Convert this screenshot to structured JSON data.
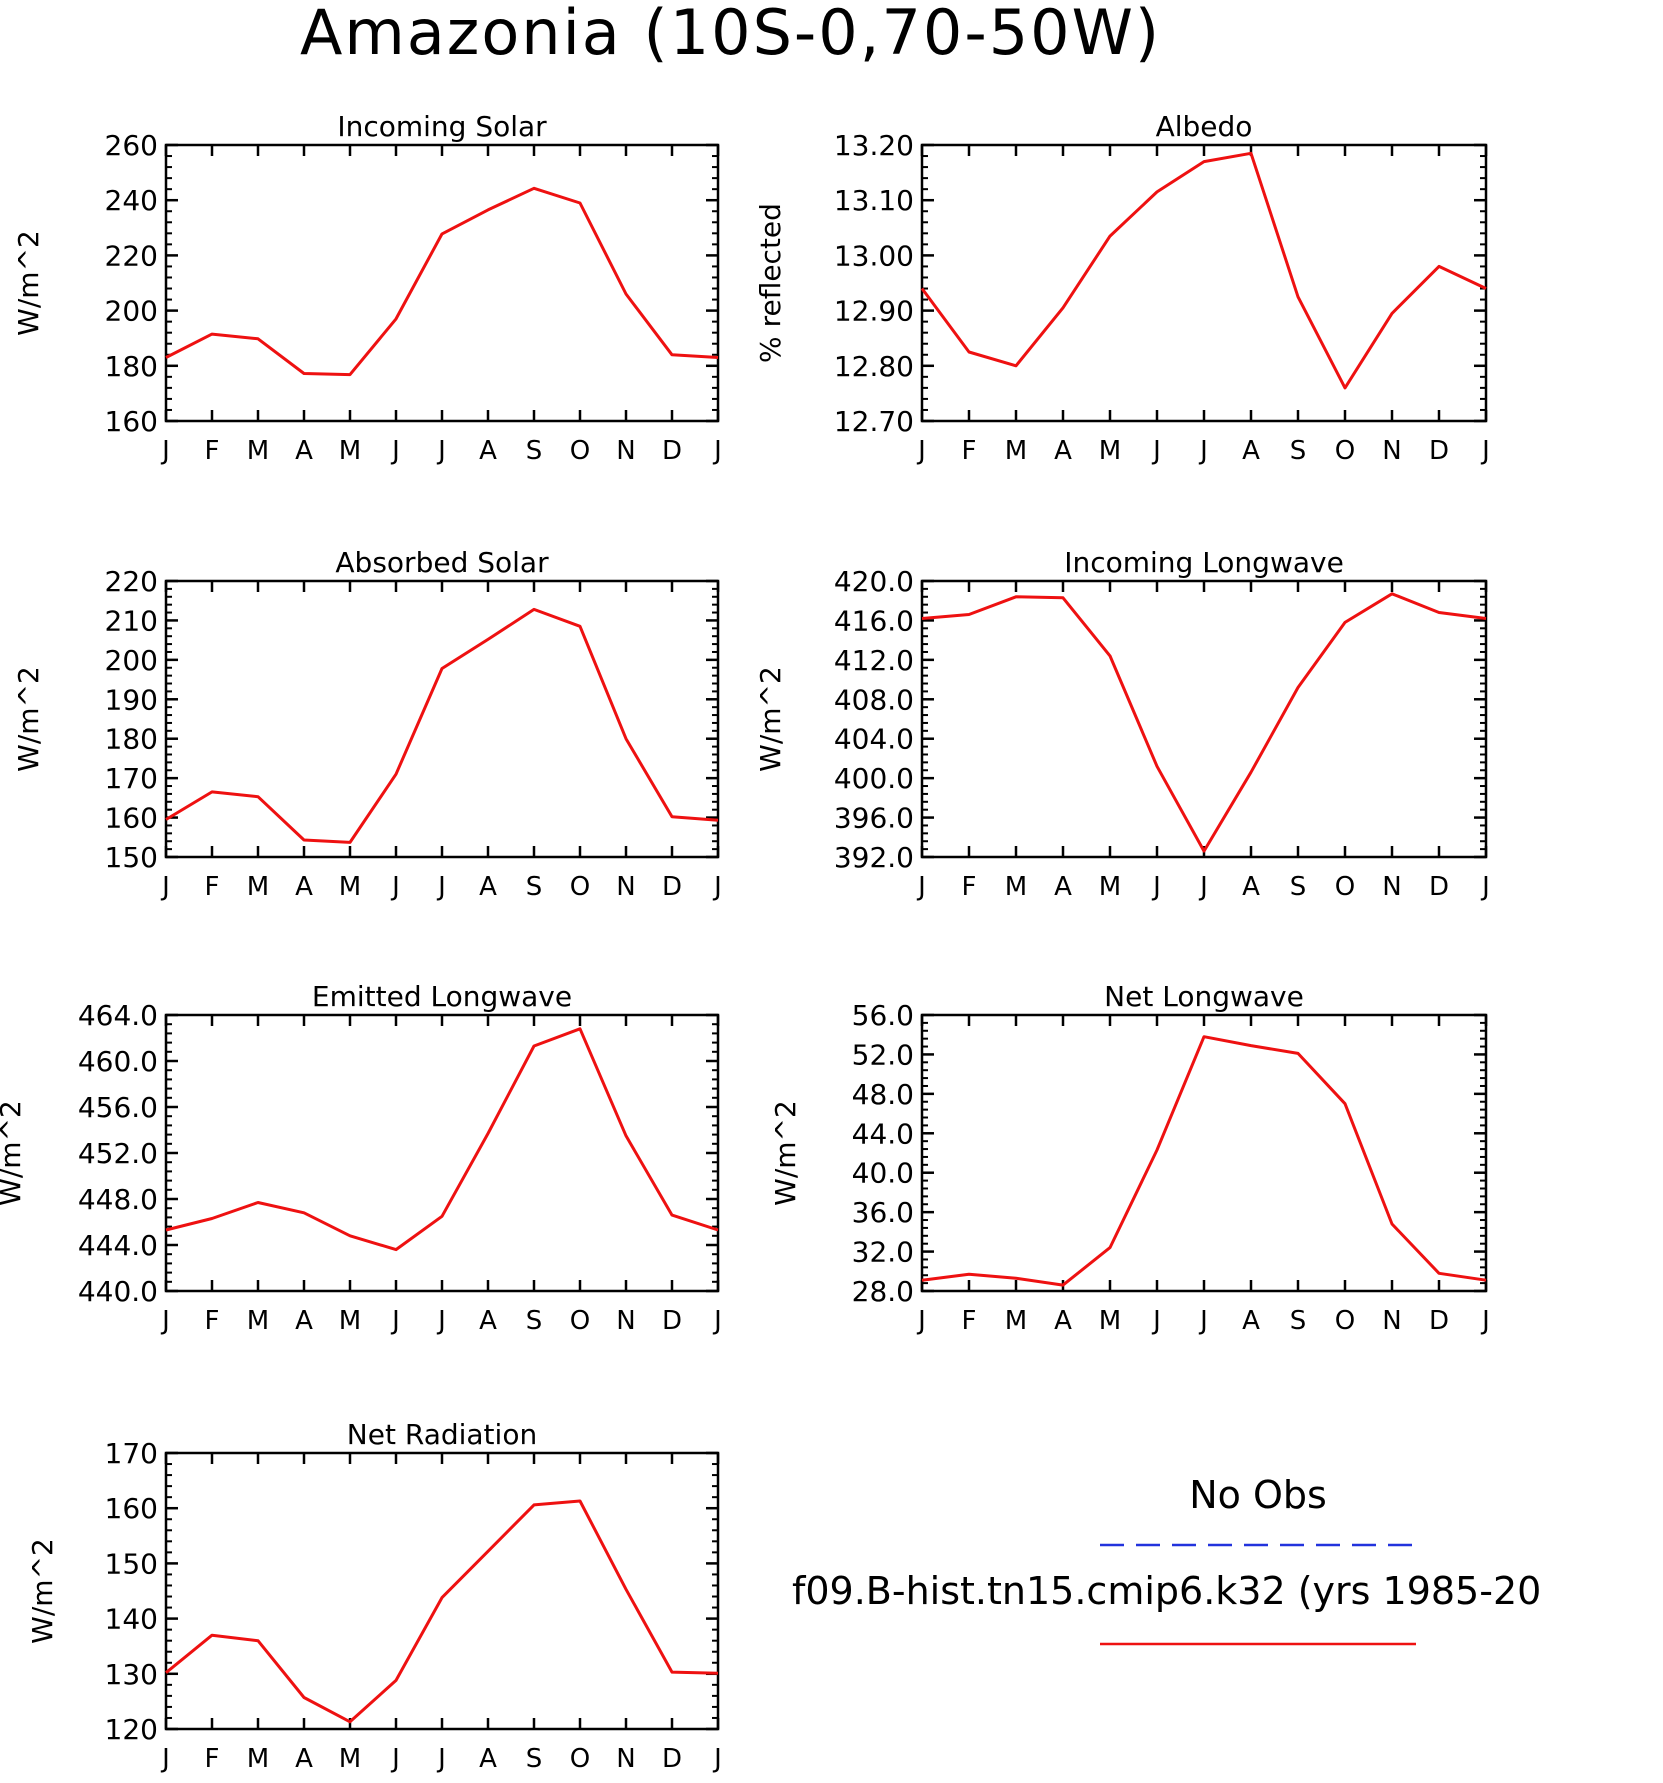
{
  "figure_title": "Amazonia (10S-0,70-50W)",
  "months": [
    "J",
    "F",
    "M",
    "A",
    "M",
    "J",
    "J",
    "A",
    "S",
    "O",
    "N",
    "D",
    "J"
  ],
  "legend": {
    "obs_label": "No Obs",
    "obs_color": "#2233dd",
    "model_label": "f09.B-hist.tn15.cmip6.k32 (yrs 1985-20",
    "model_color": "#ee1111"
  },
  "chart_data": [
    {
      "type": "line",
      "title": "Incoming Solar",
      "ylabel": "W/m^2",
      "ylim": [
        160,
        260
      ],
      "yticks": [
        "160",
        "180",
        "200",
        "220",
        "240",
        "260"
      ],
      "ytick_values": [
        160,
        180,
        200,
        220,
        240,
        260
      ],
      "x": [
        "J",
        "F",
        "M",
        "A",
        "M",
        "J",
        "J",
        "A",
        "S",
        "O",
        "N",
        "D",
        "J"
      ],
      "series": [
        {
          "values": [
            183,
            191.5,
            189.8,
            177.2,
            176.8,
            197,
            227.8,
            236.5,
            244.3,
            239,
            206,
            184,
            183
          ]
        }
      ],
      "grid": false
    },
    {
      "type": "line",
      "title": "Albedo",
      "ylabel": "% reflected",
      "ylim": [
        12.7,
        13.2
      ],
      "yticks": [
        "12.70",
        "12.80",
        "12.90",
        "13.00",
        "13.10",
        "13.20"
      ],
      "ytick_values": [
        12.7,
        12.8,
        12.9,
        13.0,
        13.1,
        13.2
      ],
      "x": [
        "J",
        "F",
        "M",
        "A",
        "M",
        "J",
        "J",
        "A",
        "S",
        "O",
        "N",
        "D",
        "J"
      ],
      "series": [
        {
          "values": [
            12.94,
            12.825,
            12.8,
            12.905,
            13.035,
            13.115,
            13.17,
            13.185,
            12.925,
            12.76,
            12.895,
            12.98,
            12.94
          ]
        }
      ],
      "grid": false
    },
    {
      "type": "line",
      "title": "Absorbed Solar",
      "ylabel": "W/m^2",
      "ylim": [
        150,
        220
      ],
      "yticks": [
        "150",
        "160",
        "170",
        "180",
        "190",
        "200",
        "210",
        "220"
      ],
      "ytick_values": [
        150,
        160,
        170,
        180,
        190,
        200,
        210,
        220
      ],
      "x": [
        "J",
        "F",
        "M",
        "A",
        "M",
        "J",
        "J",
        "A",
        "S",
        "O",
        "N",
        "D",
        "J"
      ],
      "series": [
        {
          "values": [
            159.5,
            166.5,
            165.3,
            154.3,
            153.7,
            171,
            197.8,
            205.2,
            212.8,
            208.5,
            180,
            160.2,
            159.3
          ]
        }
      ],
      "grid": false
    },
    {
      "type": "line",
      "title": "Incoming Longwave",
      "ylabel": "W/m^2",
      "ylim": [
        392,
        420
      ],
      "yticks": [
        "392.0",
        "396.0",
        "400.0",
        "404.0",
        "408.0",
        "412.0",
        "416.0",
        "420.0"
      ],
      "ytick_values": [
        392,
        396,
        400,
        404,
        408,
        412,
        416,
        420
      ],
      "x": [
        "J",
        "F",
        "M",
        "A",
        "M",
        "J",
        "J",
        "A",
        "S",
        "O",
        "N",
        "D",
        "J"
      ],
      "series": [
        {
          "values": [
            416.2,
            416.6,
            418.4,
            418.3,
            412.4,
            401.2,
            392.6,
            400.6,
            409.2,
            415.8,
            418.7,
            416.8,
            416.2
          ]
        }
      ],
      "grid": false
    },
    {
      "type": "line",
      "title": "Emitted Longwave",
      "ylabel": "W/m^2",
      "ylim": [
        440,
        464
      ],
      "yticks": [
        "440.0",
        "444.0",
        "448.0",
        "452.0",
        "456.0",
        "460.0",
        "464.0"
      ],
      "ytick_values": [
        440,
        444,
        448,
        452,
        456,
        460,
        464
      ],
      "x": [
        "J",
        "F",
        "M",
        "A",
        "M",
        "J",
        "J",
        "A",
        "S",
        "O",
        "N",
        "D",
        "J"
      ],
      "series": [
        {
          "values": [
            445.3,
            446.3,
            447.7,
            446.8,
            444.8,
            443.6,
            446.5,
            453.7,
            461.3,
            462.8,
            453.5,
            446.6,
            445.3
          ]
        }
      ],
      "grid": false
    },
    {
      "type": "line",
      "title": "Net Longwave",
      "ylabel": "W/m^2",
      "ylim": [
        28,
        56
      ],
      "yticks": [
        "28.0",
        "32.0",
        "36.0",
        "40.0",
        "44.0",
        "48.0",
        "52.0",
        "56.0"
      ],
      "ytick_values": [
        28,
        32,
        36,
        40,
        44,
        48,
        52,
        56
      ],
      "x": [
        "J",
        "F",
        "M",
        "A",
        "M",
        "J",
        "J",
        "A",
        "S",
        "O",
        "N",
        "D",
        "J"
      ],
      "series": [
        {
          "values": [
            29.1,
            29.7,
            29.3,
            28.6,
            32.4,
            42.3,
            53.8,
            52.9,
            52.1,
            47,
            34.8,
            29.8,
            29.1
          ]
        }
      ],
      "grid": false
    },
    {
      "type": "line",
      "title": "Net Radiation",
      "ylabel": "W/m^2",
      "ylim": [
        120,
        170
      ],
      "yticks": [
        "120",
        "130",
        "140",
        "150",
        "160",
        "170"
      ],
      "ytick_values": [
        120,
        130,
        140,
        150,
        160,
        170
      ],
      "x": [
        "J",
        "F",
        "M",
        "A",
        "M",
        "J",
        "J",
        "A",
        "S",
        "O",
        "N",
        "D",
        "J"
      ],
      "series": [
        {
          "values": [
            130.2,
            137,
            136,
            125.7,
            121.3,
            128.8,
            143.8,
            152.2,
            160.6,
            161.3,
            145.3,
            130.3,
            130.1
          ]
        }
      ],
      "grid": false
    }
  ]
}
